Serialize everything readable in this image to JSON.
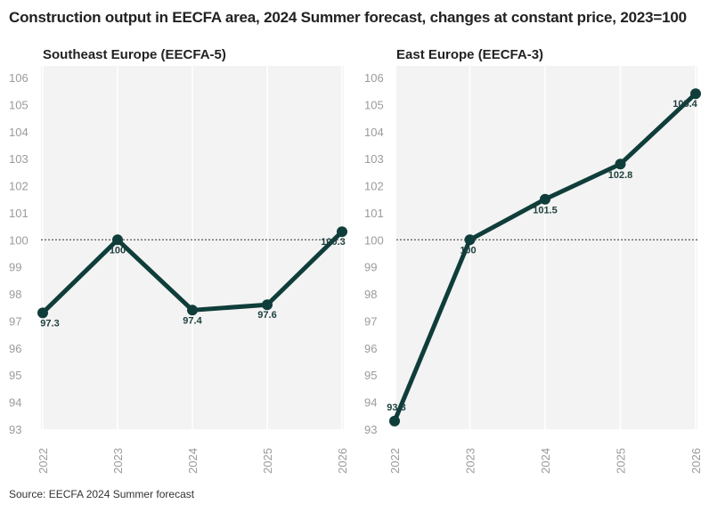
{
  "title": "Construction output in EECFA area, 2024 Summer forecast, changes at constant price, 2023=100",
  "source": "Source: EECFA 2024 Summer forecast",
  "colors": {
    "line": "#0f3d3a",
    "panel_bg": "#f3f3f3",
    "tick": "#9b9b9b",
    "reference": "#333333"
  },
  "chart_data": [
    {
      "type": "line",
      "title": "Southeast Europe (EECFA-5)",
      "categories": [
        "2022",
        "2023",
        "2024",
        "2025",
        "2026"
      ],
      "values": [
        97.3,
        100,
        97.4,
        97.6,
        100.3
      ],
      "value_labels": [
        "97.3",
        "100",
        "97.4",
        "97.6",
        "100.3"
      ],
      "ylim": [
        93,
        106
      ],
      "yticks": [
        "93",
        "94",
        "95",
        "96",
        "97",
        "98",
        "99",
        "100",
        "101",
        "102",
        "103",
        "104",
        "105",
        "106"
      ],
      "reference_line": 100
    },
    {
      "type": "line",
      "title": "East Europe (EECFA-3)",
      "categories": [
        "2022",
        "2023",
        "2024",
        "2025",
        "2026"
      ],
      "values": [
        93.3,
        100,
        101.5,
        102.8,
        105.4
      ],
      "value_labels": [
        "93.3",
        "100",
        "101.5",
        "102.8",
        "105.4"
      ],
      "ylim": [
        93,
        106
      ],
      "yticks": [
        "93",
        "94",
        "95",
        "96",
        "97",
        "98",
        "99",
        "100",
        "101",
        "102",
        "103",
        "104",
        "105",
        "106"
      ],
      "reference_line": 100
    }
  ]
}
